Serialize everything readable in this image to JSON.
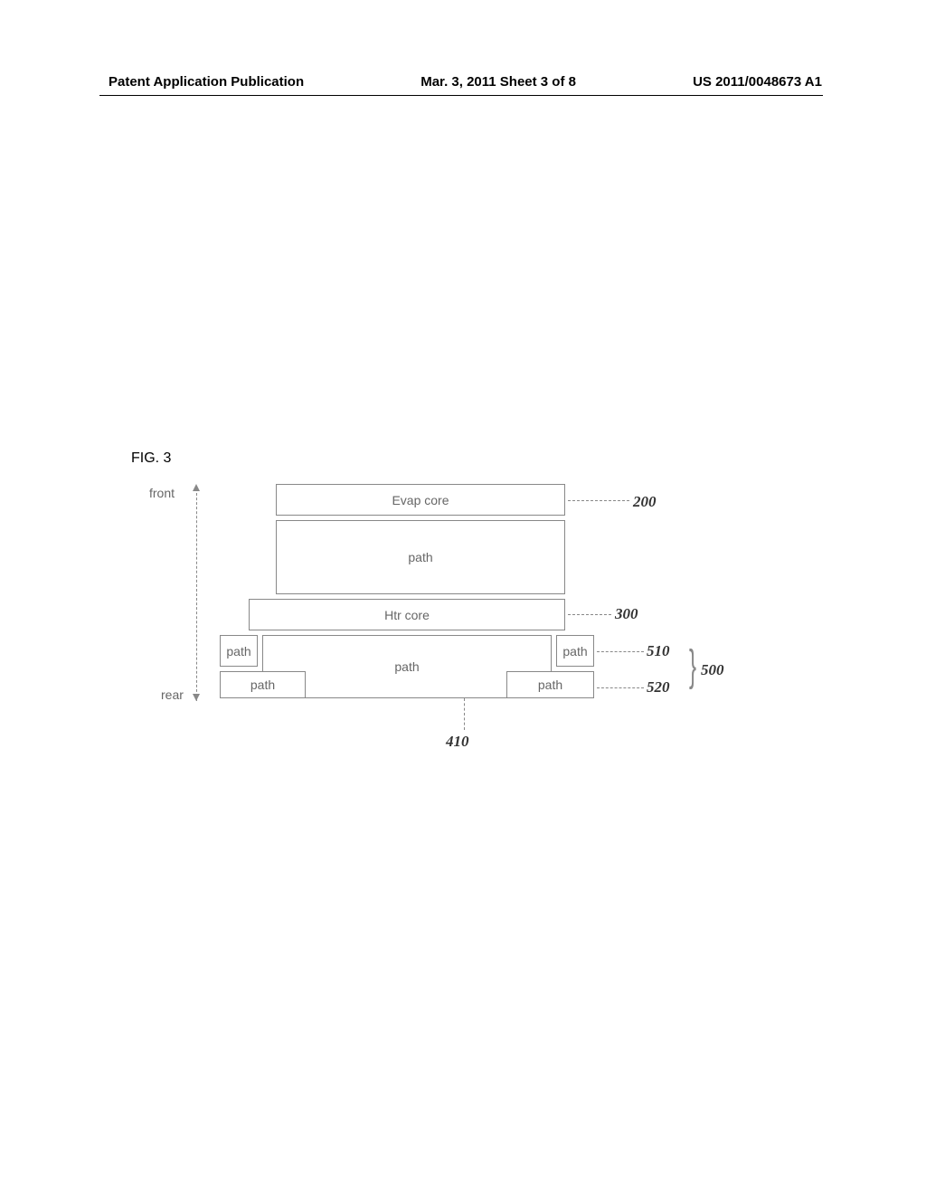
{
  "header": {
    "left": "Patent Application Publication",
    "center": "Mar. 3, 2011  Sheet 3 of 8",
    "right": "US 2011/0048673 A1"
  },
  "figure": {
    "label": "FIG. 3",
    "axis": {
      "front": "front",
      "rear": "rear"
    },
    "boxes": {
      "evap_core": "Evap core",
      "path_upper": "path",
      "htr_core": "Htr core",
      "path_left_upper": "path",
      "path_center": "path",
      "path_right_upper": "path",
      "path_left_lower": "path",
      "path_right_lower": "path"
    },
    "callouts": {
      "c200": "200",
      "c300": "300",
      "c510": "510",
      "c520": "520",
      "c500": "500",
      "c410": "410"
    }
  }
}
